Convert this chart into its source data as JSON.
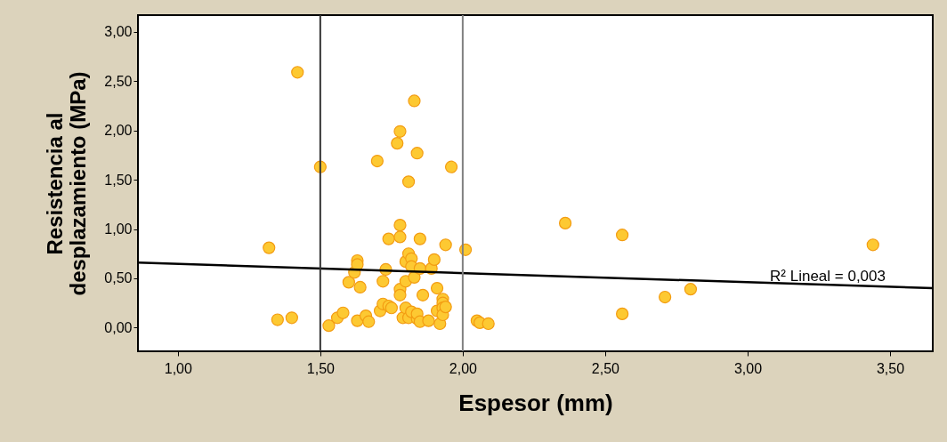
{
  "chart_data": {
    "type": "scatter",
    "xlabel": "Espesor (mm)",
    "ylabel": "Resistencia al\ndesplazamiento (MPa)",
    "xlim": [
      0.86,
      3.65
    ],
    "ylim": [
      -0.24,
      3.17
    ],
    "xticks": [
      {
        "value": 1,
        "label": "1,00"
      },
      {
        "value": 1.5,
        "label": "1,50"
      },
      {
        "value": 2,
        "label": "2,00"
      },
      {
        "value": 2.5,
        "label": "2,50"
      },
      {
        "value": 3,
        "label": "3,00"
      },
      {
        "value": 3.5,
        "label": "3,50"
      }
    ],
    "yticks": [
      {
        "value": 0,
        "label": "0,00"
      },
      {
        "value": 0.5,
        "label": "0,50"
      },
      {
        "value": 1,
        "label": "1,00"
      },
      {
        "value": 1.5,
        "label": "1,50"
      },
      {
        "value": 2,
        "label": "2,00"
      },
      {
        "value": 2.5,
        "label": "2,50"
      },
      {
        "value": 3,
        "label": "3,00"
      }
    ],
    "grid": false,
    "series": [
      {
        "marker": "circle",
        "color": "#fdc932",
        "x": [
          1.32,
          1.42,
          1.35,
          1.4,
          1.5,
          1.53,
          1.56,
          1.58,
          1.6,
          1.62,
          1.63,
          1.63,
          1.64,
          1.63,
          1.66,
          1.67,
          1.7,
          1.71,
          1.72,
          1.72,
          1.73,
          1.74,
          1.74,
          1.75,
          1.77,
          1.78,
          1.78,
          1.78,
          1.78,
          1.78,
          1.79,
          1.8,
          1.8,
          1.8,
          1.81,
          1.81,
          1.81,
          1.82,
          1.82,
          1.82,
          1.83,
          1.83,
          1.84,
          1.84,
          1.84,
          1.85,
          1.85,
          1.85,
          1.86,
          1.88,
          1.89,
          1.9,
          1.91,
          1.91,
          1.92,
          1.93,
          1.93,
          1.93,
          1.93,
          1.94,
          1.94,
          1.96,
          2.01,
          2.05,
          2.06,
          2.09,
          2.36,
          2.56,
          2.56,
          2.71,
          2.8,
          3.44
        ],
        "values": [
          0.81,
          2.59,
          0.08,
          0.1,
          1.63,
          0.02,
          0.1,
          0.15,
          0.46,
          0.56,
          0.68,
          0.64,
          0.41,
          0.07,
          0.12,
          0.06,
          1.69,
          0.17,
          0.24,
          0.47,
          0.59,
          0.9,
          0.22,
          0.2,
          1.87,
          0.92,
          1.04,
          1.99,
          0.39,
          0.33,
          0.1,
          0.67,
          0.47,
          0.2,
          1.48,
          0.1,
          0.75,
          0.7,
          0.62,
          0.16,
          2.3,
          0.51,
          1.77,
          0.09,
          0.14,
          0.9,
          0.06,
          0.6,
          0.33,
          0.07,
          0.6,
          0.69,
          0.4,
          0.17,
          0.04,
          0.29,
          0.25,
          0.2,
          0.13,
          0.84,
          0.21,
          1.63,
          0.79,
          0.07,
          0.05,
          0.04,
          1.06,
          0.94,
          0.14,
          0.31,
          0.39,
          0.84
        ]
      },
      {
        "type": "line",
        "color": "#000000",
        "x": [
          0.86,
          3.65
        ],
        "values": [
          0.66,
          0.4
        ]
      }
    ],
    "ref_lines": [
      {
        "axis": "x",
        "value": 1.5,
        "color": "#333333"
      },
      {
        "axis": "x",
        "value": 2.0,
        "color": "#808080"
      }
    ],
    "annotations": [
      "R² Lineal = 0,003"
    ]
  }
}
